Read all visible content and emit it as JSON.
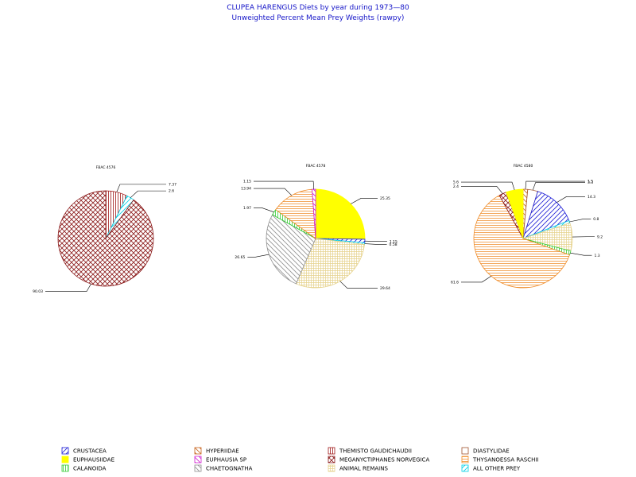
{
  "title": "CLUPEA HARENGUS Diets by year during 1973—80",
  "subtitle": "Unweighted Percent Mean Prey Weights (rawpy)",
  "chart_data": [
    {
      "type": "pie",
      "title": "FBAC 4576",
      "slices": [
        {
          "name": "THEMISTO GAUDICHAUDII",
          "value": 7.37,
          "label": "7.37"
        },
        {
          "name": "ALL OTHER PREY",
          "value": 2.6,
          "label": "2.6"
        },
        {
          "name": "MEGANYCTIPHANES NORVEGICA",
          "value": 90.03,
          "label": "90.03"
        }
      ]
    },
    {
      "type": "pie",
      "title": "FBAC 4578",
      "slices": [
        {
          "name": "EUPHAUSIIDAE",
          "value": 25.35,
          "label": "25.35"
        },
        {
          "name": "CRUSTACEA",
          "value": 1.15,
          "label": "1.15"
        },
        {
          "name": "ALL OTHER PREY",
          "value": 0.58,
          "label": "0.58"
        },
        {
          "name": "ANIMAL REMAINS",
          "value": 29.64,
          "label": "29.64"
        },
        {
          "name": "CHAETOGNATHA",
          "value": 26.65,
          "label": "26.65"
        },
        {
          "name": "CALANOIDA",
          "value": 1.97,
          "label": "1.97"
        },
        {
          "name": "THYSANOESSA RASCHII",
          "value": 13.94,
          "label": "13.94"
        },
        {
          "name": "EUPHAUSIA SP",
          "value": 1.15,
          "label": "1.15"
        }
      ]
    },
    {
      "type": "pie",
      "title": "FBAC 4580",
      "slices": [
        {
          "name": "HYPERIIDAE",
          "value": 1.5,
          "label": "1.5"
        },
        {
          "name": "DIASTYLIDAE",
          "value": 3.3,
          "label": "3.3"
        },
        {
          "name": "CRUSTACEA",
          "value": 14.3,
          "label": "14.3"
        },
        {
          "name": "ALL OTHER PREY",
          "value": 0.8,
          "label": "0.8"
        },
        {
          "name": "ANIMAL REMAINS",
          "value": 9.2,
          "label": "9.2"
        },
        {
          "name": "CALANOIDA",
          "value": 1.3,
          "label": "1.3"
        },
        {
          "name": "THYSANOESSA RASCHII",
          "value": 61.6,
          "label": "61.6"
        },
        {
          "name": "MEGANYCTIPHANES NORVEGICA",
          "value": 2.4,
          "label": "2.4"
        },
        {
          "name": "EUPHAUSIIDAE",
          "value": 5.6,
          "label": "5.6"
        }
      ]
    }
  ],
  "legend": [
    {
      "name": "CRUSTACEA",
      "color": "#1e1ed6",
      "pattern": "diag-left"
    },
    {
      "name": "EUPHAUSIIDAE",
      "color": "#ffff00",
      "pattern": "solid"
    },
    {
      "name": "CALANOIDA",
      "color": "#33cc33",
      "pattern": "vertical"
    },
    {
      "name": "HYPERIIDAE",
      "color": "#c8641e",
      "pattern": "diag-right"
    },
    {
      "name": "EUPHAUSIA SP",
      "color": "#d020d0",
      "pattern": "diag-right"
    },
    {
      "name": "CHAETOGNATHA",
      "color": "#909090",
      "pattern": "diag-right"
    },
    {
      "name": "THEMISTO GAUDICHAUDII",
      "color": "#a01818",
      "pattern": "vertical"
    },
    {
      "name": "MEGANYCTIPHANES NORVEGICA",
      "color": "#8b1a1a",
      "pattern": "cross"
    },
    {
      "name": "ANIMAL REMAINS",
      "color": "#e6d28c",
      "pattern": "grid"
    },
    {
      "name": "DIASTYLIDAE",
      "color": "#a0522d",
      "pattern": "empty"
    },
    {
      "name": "THYSANOESSA RASCHII",
      "color": "#f08c28",
      "pattern": "horizontal"
    },
    {
      "name": "ALL OTHER PREY",
      "color": "#00d0e6",
      "pattern": "diag-left"
    }
  ]
}
